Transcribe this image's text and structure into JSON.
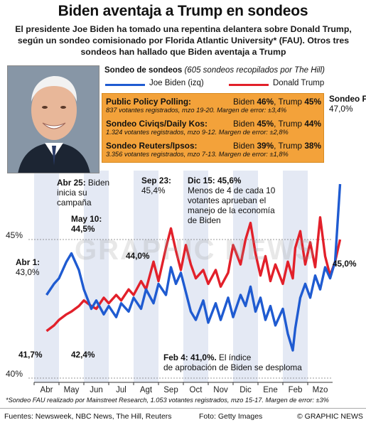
{
  "title": "Biden aventaja a Trump en sondeos",
  "subtitle": "El presidente Joe Biden ha tomado una repentina delantera sobre Donald Trump, según un sondeo comisionado por Florida Atlantic University* (FAU). Otros tres sondeos han hallado que Biden aventaja a Trump",
  "poll_title": "Sondeo de sondeos",
  "poll_subtitle": "(605 sondeos recopilados por The Hill)",
  "legend": {
    "biden": "Joe Biden (izq)",
    "trump": "Donald Trump",
    "biden_color": "#1f5bd1",
    "trump_color": "#e2202a"
  },
  "polls": [
    {
      "name": "Public Policy Polling:",
      "biden": "Biden ",
      "biden_val": "46%",
      "trump": ", Trump ",
      "trump_val": "45%",
      "detail": "837 votantes registrados, mzo 19-20. Margen de error: ±3,4%"
    },
    {
      "name": "Sondeo Civiqs/Daily Kos:",
      "biden": "Biden ",
      "biden_val": "45%",
      "trump": ", Trump ",
      "trump_val": "44%",
      "detail": "1.324 votantes registrados, mzo 9-12. Margen de error: ±2,8%"
    },
    {
      "name": "Sondeo Reuters/Ipsos:",
      "biden": "Biden ",
      "biden_val": "39%",
      "trump": ", Trump ",
      "trump_val": "38%",
      "detail": "3.356 votantes registrados, mzo 7-13. Margen de error: ±1,8%"
    }
  ],
  "annotations": {
    "fau_label": "Sondeo FAU:",
    "fau_value": "47,0%",
    "abr25_date": "Abr 25:",
    "abr25_text1": " Biden",
    "abr25_text2": "inicia su",
    "abr25_text3": "campaña",
    "may10_date": "May 10:",
    "may10_value": "44,5%",
    "abr1_date": "Abr 1:",
    "abr1_value": "43,0%",
    "sep23_date": "Sep 23:",
    "sep23_value": "45,4%",
    "dic15_date": "Dic 15: 45,6%",
    "dic15_text1": "Menos de 4 de cada 10",
    "dic15_text2": "votantes aprueban el",
    "dic15_text3": "manejo de la economía",
    "dic15_text4": "de Biden",
    "val_440": "44,0%",
    "val_450": "45,0%",
    "val_417": "41,7%",
    "val_424": "42,4%",
    "feb4_date": "Feb 4: 41,0%.",
    "feb4_text1": " El índice",
    "feb4_text2": "de aprobación de Biden se desploma"
  },
  "chart_data": {
    "type": "line",
    "title": "Sondeo de sondeos",
    "x_tick_labels": [
      "Abr",
      "May",
      "Jun",
      "Jul",
      "Agt",
      "Sep",
      "Oct",
      "Nov",
      "Dic",
      "Ene",
      "Feb",
      "Mzo"
    ],
    "y_tick_labels": [
      "40%",
      "45%"
    ],
    "ylim": [
      40,
      47.6
    ],
    "grid": true,
    "legend_position": "top-right",
    "x_months": [
      0,
      0.3,
      0.5,
      0.8,
      1.0,
      1.3,
      1.5,
      1.8,
      2.0,
      2.3,
      2.5,
      2.8,
      3.0,
      3.3,
      3.5,
      3.8,
      4.0,
      4.3,
      4.5,
      4.8,
      5.0,
      5.2,
      5.4,
      5.6,
      5.8,
      6.0,
      6.3,
      6.5,
      6.8,
      7.0,
      7.3,
      7.5,
      7.8,
      8.0,
      8.2,
      8.4,
      8.6,
      8.8,
      9.0,
      9.2,
      9.5,
      9.7,
      9.9,
      10.0,
      10.2,
      10.4,
      10.6,
      10.8,
      11.0,
      11.2,
      11.4,
      11.6,
      11.8
    ],
    "series": [
      {
        "name": "Joe Biden (izq)",
        "color": "#1f5bd1",
        "values": [
          43.0,
          43.4,
          43.6,
          44.2,
          44.5,
          43.9,
          43.2,
          42.5,
          42.8,
          42.3,
          42.6,
          42.2,
          42.7,
          42.4,
          42.9,
          42.5,
          43.2,
          42.7,
          43.4,
          43.0,
          44.0,
          43.4,
          43.8,
          43.1,
          42.4,
          42.1,
          42.8,
          42.0,
          42.7,
          42.1,
          42.9,
          42.2,
          43.0,
          42.6,
          43.3,
          42.4,
          42.9,
          42.1,
          42.6,
          41.9,
          42.5,
          41.6,
          41.0,
          41.8,
          42.9,
          43.4,
          42.9,
          43.7,
          43.2,
          44.0,
          43.6,
          44.2,
          47.0
        ]
      },
      {
        "name": "Donald Trump",
        "color": "#e2202a",
        "values": [
          41.7,
          41.9,
          42.1,
          42.3,
          42.4,
          42.6,
          42.8,
          42.6,
          42.5,
          42.9,
          42.7,
          43.0,
          42.8,
          43.2,
          43.0,
          43.5,
          43.2,
          44.2,
          43.5,
          44.7,
          45.4,
          44.6,
          43.9,
          44.8,
          44.1,
          43.6,
          43.9,
          43.4,
          43.9,
          43.3,
          43.8,
          44.8,
          44.1,
          45.0,
          45.6,
          44.5,
          43.7,
          44.4,
          43.5,
          44.1,
          43.4,
          44.2,
          43.6,
          44.7,
          45.3,
          44.1,
          44.9,
          44.0,
          45.8,
          44.4,
          43.7,
          44.2,
          45.0
        ]
      }
    ]
  },
  "footnote": "*Sondeo FAU realizado por Mainstreet Research, 1.053 votantes registrados, mzo 15-17. Margen de error: ±3%",
  "footer": {
    "sources": "Fuentes: Newsweek, NBC News, The Hill, Reuters",
    "photo": "Foto: Getty Images",
    "credit": "© GRAPHIC NEWS"
  },
  "watermark": "GRAPHIC NEWS"
}
